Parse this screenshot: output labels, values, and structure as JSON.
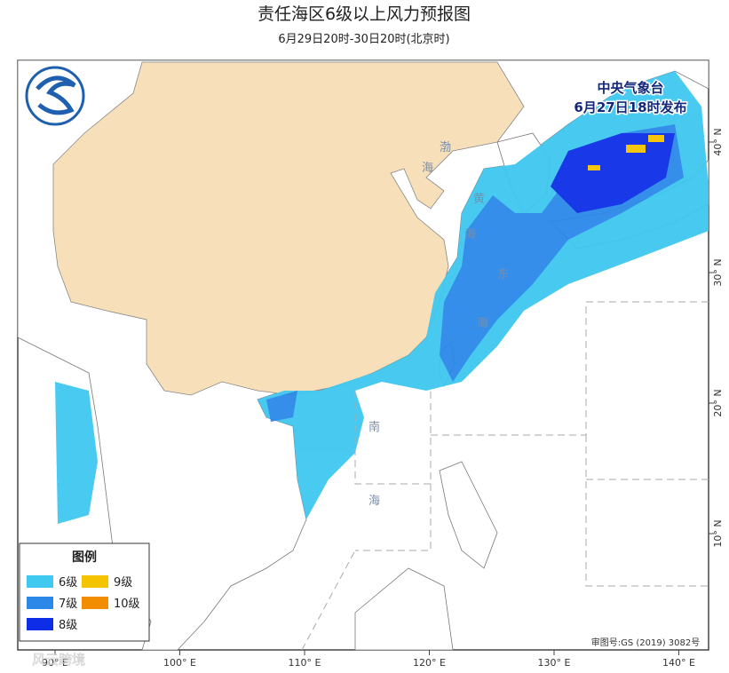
{
  "header": {
    "title": "责任海区6级以上风力预报图",
    "subtitle": "6月29日20时-30日20时(北京时)"
  },
  "issuer": {
    "name": "中央气象台",
    "time": "6月27日18时发布"
  },
  "sea_labels": [
    "渤",
    "海",
    "黄",
    "海",
    "东",
    "海",
    "南",
    "海"
  ],
  "legend": {
    "title": "图例",
    "items": [
      {
        "label": "6级",
        "color": "#3fc8f0"
      },
      {
        "label": "7级",
        "color": "#2b88e8"
      },
      {
        "label": "8级",
        "color": "#0d2ee6"
      },
      {
        "label": "9级",
        "color": "#f5c400"
      },
      {
        "label": "10级",
        "color": "#f28c00"
      }
    ]
  },
  "longitude_labels": [
    "90° E",
    "100° E",
    "110° E",
    "120° E",
    "130° E",
    "140° E"
  ],
  "latitude_labels": [
    "40° N",
    "30° N",
    "20° N",
    "10° N"
  ],
  "map_number": "审图号:GS (2019) 3082号",
  "watermark": "风云跨境"
}
